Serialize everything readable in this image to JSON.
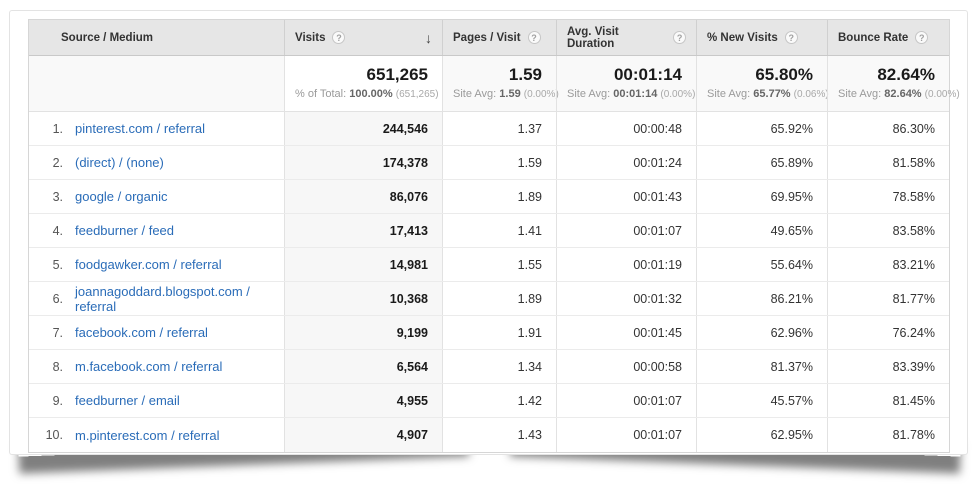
{
  "icons": {
    "help": "?",
    "sort_desc": "↓"
  },
  "colors": {
    "header_bg": "#e6e6e6",
    "sorted_column_bg": "#f7f7f7",
    "link_blue": "#2a6cb8",
    "muted_gray": "#9a9a9a"
  },
  "table": {
    "columns": [
      {
        "label": "Source / Medium",
        "has_help": false,
        "sorted": false
      },
      {
        "label": "Visits",
        "has_help": true,
        "sorted": true,
        "sort_direction": "descending"
      },
      {
        "label": "Pages / Visit",
        "has_help": true,
        "sorted": false
      },
      {
        "label": "Avg. Visit Duration",
        "has_help": true,
        "sorted": false
      },
      {
        "label": "% New Visits",
        "has_help": true,
        "sorted": false
      },
      {
        "label": "Bounce Rate",
        "has_help": true,
        "sorted": false
      }
    ],
    "summary": [
      {
        "value": "651,265",
        "sub_label": "% of Total:",
        "sub_value": "100.00%",
        "sub_paren": "(651,265)"
      },
      {
        "value": "1.59",
        "sub_label": "Site Avg:",
        "sub_value": "1.59",
        "sub_paren": "(0.00%)"
      },
      {
        "value": "00:01:14",
        "sub_label": "Site Avg:",
        "sub_value": "00:01:14",
        "sub_paren": "(0.00%)"
      },
      {
        "value": "65.80%",
        "sub_label": "Site Avg:",
        "sub_value": "65.77%",
        "sub_paren": "(0.06%)"
      },
      {
        "value": "82.64%",
        "sub_label": "Site Avg:",
        "sub_value": "82.64%",
        "sub_paren": "(0.00%)"
      }
    ],
    "rows": [
      {
        "rank": "1.",
        "source": "pinterest.com / referral",
        "visits": "244,546",
        "pages_per_visit": "1.37",
        "avg_visit_duration": "00:00:48",
        "pct_new_visits": "65.92%",
        "bounce_rate": "86.30%"
      },
      {
        "rank": "2.",
        "source": "(direct) / (none)",
        "visits": "174,378",
        "pages_per_visit": "1.59",
        "avg_visit_duration": "00:01:24",
        "pct_new_visits": "65.89%",
        "bounce_rate": "81.58%"
      },
      {
        "rank": "3.",
        "source": "google / organic",
        "visits": "86,076",
        "pages_per_visit": "1.89",
        "avg_visit_duration": "00:01:43",
        "pct_new_visits": "69.95%",
        "bounce_rate": "78.58%"
      },
      {
        "rank": "4.",
        "source": "feedburner / feed",
        "visits": "17,413",
        "pages_per_visit": "1.41",
        "avg_visit_duration": "00:01:07",
        "pct_new_visits": "49.65%",
        "bounce_rate": "83.58%"
      },
      {
        "rank": "5.",
        "source": "foodgawker.com / referral",
        "visits": "14,981",
        "pages_per_visit": "1.55",
        "avg_visit_duration": "00:01:19",
        "pct_new_visits": "55.64%",
        "bounce_rate": "83.21%"
      },
      {
        "rank": "6.",
        "source": "joannagoddard.blogspot.com / referral",
        "visits": "10,368",
        "pages_per_visit": "1.89",
        "avg_visit_duration": "00:01:32",
        "pct_new_visits": "86.21%",
        "bounce_rate": "81.77%"
      },
      {
        "rank": "7.",
        "source": "facebook.com / referral",
        "visits": "9,199",
        "pages_per_visit": "1.91",
        "avg_visit_duration": "00:01:45",
        "pct_new_visits": "62.96%",
        "bounce_rate": "76.24%"
      },
      {
        "rank": "8.",
        "source": "m.facebook.com / referral",
        "visits": "6,564",
        "pages_per_visit": "1.34",
        "avg_visit_duration": "00:00:58",
        "pct_new_visits": "81.37%",
        "bounce_rate": "83.39%"
      },
      {
        "rank": "9.",
        "source": "feedburner / email",
        "visits": "4,955",
        "pages_per_visit": "1.42",
        "avg_visit_duration": "00:01:07",
        "pct_new_visits": "45.57%",
        "bounce_rate": "81.45%"
      },
      {
        "rank": "10.",
        "source": "m.pinterest.com / referral",
        "visits": "4,907",
        "pages_per_visit": "1.43",
        "avg_visit_duration": "00:01:07",
        "pct_new_visits": "62.95%",
        "bounce_rate": "81.78%"
      }
    ]
  }
}
